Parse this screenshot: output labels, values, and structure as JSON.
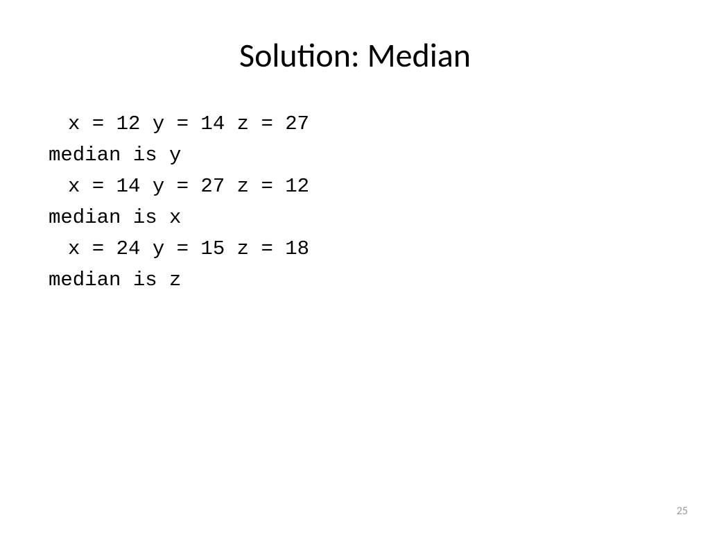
{
  "title": "Solution: Median",
  "lines": [
    {
      "text": "x = 12  y = 14  z = 27",
      "indented": true
    },
    {
      "text": "median is y",
      "indented": false
    },
    {
      "text": "x = 14  y = 27  z = 12",
      "indented": true
    },
    {
      "text": "median is x",
      "indented": false
    },
    {
      "text": "x = 24  y = 15  z = 18",
      "indented": true
    },
    {
      "text": "median is z",
      "indented": false
    }
  ],
  "page_number": "25",
  "style": {
    "title_fontsize": 48,
    "title_color": "#000000",
    "content_fontsize": 29,
    "content_font": "Consolas",
    "content_color": "#000000",
    "page_number_fontsize": 16,
    "page_number_color": "#999999",
    "background_color": "#ffffff"
  }
}
